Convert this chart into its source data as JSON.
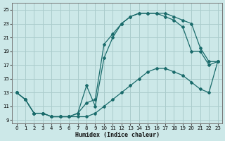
{
  "xlabel": "Humidex (Indice chaleur)",
  "background_color": "#cce8e8",
  "grid_color": "#aacccc",
  "line_color": "#1a6b6b",
  "xlim": [
    -0.5,
    23.5
  ],
  "ylim": [
    8.5,
    26.0
  ],
  "xticks": [
    0,
    1,
    2,
    3,
    4,
    5,
    6,
    7,
    8,
    9,
    10,
    11,
    12,
    13,
    14,
    15,
    16,
    17,
    18,
    19,
    20,
    21,
    22,
    23
  ],
  "yticks": [
    9,
    11,
    13,
    15,
    17,
    19,
    21,
    23,
    25
  ],
  "curve1_x": [
    0,
    1,
    2,
    3,
    4,
    5,
    6,
    7,
    8,
    9,
    10,
    11,
    12,
    13,
    14,
    15,
    16,
    17,
    18,
    19,
    20,
    21,
    22,
    23
  ],
  "curve1_y": [
    13,
    12,
    10,
    10,
    9.5,
    9.5,
    9.5,
    10,
    11.5,
    12,
    20,
    21.5,
    23,
    24,
    24.5,
    24.5,
    24.5,
    24.5,
    24,
    23.5,
    23,
    19.5,
    17.5,
    17.5
  ],
  "curve2_x": [
    0,
    1,
    2,
    3,
    4,
    5,
    6,
    7,
    8,
    9,
    10,
    11,
    12,
    13,
    14,
    15,
    16,
    17,
    18,
    19,
    20,
    21,
    22,
    23
  ],
  "curve2_y": [
    13,
    12,
    10,
    10,
    9.5,
    9.5,
    9.5,
    10,
    14,
    11,
    18,
    21,
    23,
    24,
    24.5,
    24.5,
    24.5,
    24,
    23.5,
    22.5,
    19,
    19,
    17,
    17.5
  ],
  "curve3_x": [
    0,
    1,
    2,
    3,
    4,
    5,
    6,
    7,
    8,
    9,
    10,
    11,
    12,
    13,
    14,
    15,
    16,
    17,
    18,
    19,
    20,
    21,
    22,
    23
  ],
  "curve3_y": [
    13,
    12,
    10,
    10,
    9.5,
    9.5,
    9.5,
    9.5,
    9.5,
    10,
    11,
    12,
    13,
    14,
    15,
    16,
    16.5,
    16.5,
    16,
    15.5,
    14.5,
    13.5,
    13,
    17.5
  ]
}
